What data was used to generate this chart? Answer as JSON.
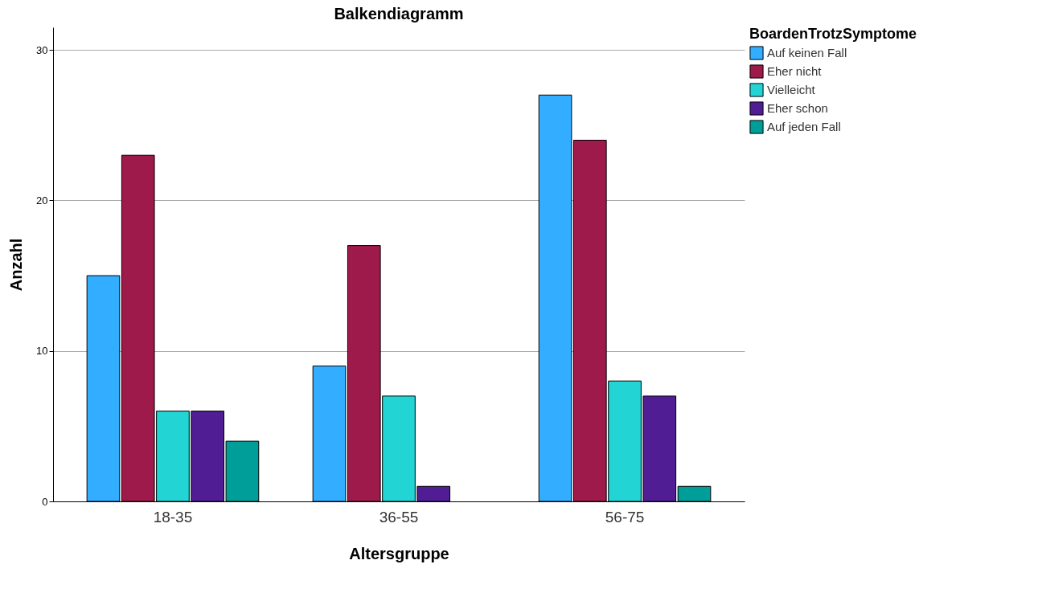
{
  "chart_data": {
    "type": "bar",
    "title": "Balkendiagramm",
    "xlabel": "Altersgruppe",
    "ylabel": "Anzahl",
    "legend_title": "BoardenTrotzSymptome",
    "categories": [
      "18-35",
      "36-55",
      "56-75"
    ],
    "series": [
      {
        "name": "Auf keinen Fall",
        "color": "#33adff",
        "values": [
          15,
          9,
          27
        ]
      },
      {
        "name": "Eher nicht",
        "color": "#9e1a4b",
        "values": [
          23,
          17,
          24
        ]
      },
      {
        "name": "Vielleicht",
        "color": "#22d4d4",
        "values": [
          6,
          7,
          8
        ]
      },
      {
        "name": "Eher schon",
        "color": "#511d94",
        "values": [
          6,
          1,
          7
        ]
      },
      {
        "name": "Auf jeden Fall",
        "color": "#009e99",
        "values": [
          4,
          null,
          1
        ]
      }
    ],
    "ylim": [
      0,
      31.5
    ],
    "yticks": [
      0,
      10,
      20,
      30
    ],
    "grid": "y",
    "legend": "top right"
  }
}
